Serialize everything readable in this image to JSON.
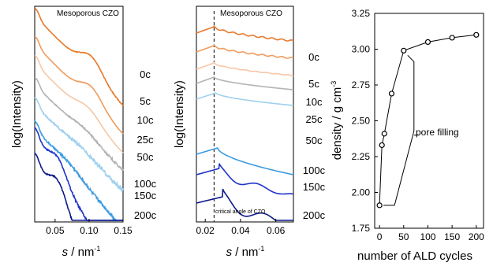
{
  "chart_data": [
    {
      "type": "line",
      "title": "Mesoporous CZO",
      "xlabel": "s / nm",
      "xlabel_exponent": "-1",
      "ylabel": "log(Intensity)",
      "xlim": [
        0.02,
        0.15
      ],
      "xticks": [
        "0.05",
        "0.10",
        "0.15"
      ],
      "xtick_values": [
        0.05,
        0.1,
        0.15
      ],
      "y_scale": "log (offset curves, no tick labels)",
      "series": [
        {
          "name": "0c",
          "color": "#e8792b",
          "offset": 0.0,
          "decay": 1.0,
          "bump_center": 0.104,
          "bump_amp": 0.55,
          "bump_width": 0.016,
          "noise": 0.015
        },
        {
          "name": "5c",
          "color": "#f19b5c",
          "offset": 0.9,
          "decay": 1.0,
          "bump_center": 0.104,
          "bump_amp": 0.48,
          "bump_width": 0.016,
          "noise": 0.01
        },
        {
          "name": "10c",
          "color": "#f6c7a6",
          "offset": 1.5,
          "decay": 1.0,
          "bump_center": 0.1,
          "bump_amp": 0.32,
          "bump_width": 0.017,
          "noise": 0.0
        },
        {
          "name": "25c",
          "color": "#b3b3b3",
          "offset": 2.2,
          "decay": 0.95,
          "bump_center": 0.095,
          "bump_amp": 0.15,
          "bump_width": 0.018,
          "noise": 0.04
        },
        {
          "name": "50c",
          "color": "#9fd0ee",
          "offset": 2.85,
          "decay": 0.95,
          "bump_center": 0.09,
          "bump_amp": 0.1,
          "bump_width": 0.02,
          "noise": 0.07
        },
        {
          "name": "100c",
          "color": "#3d9ce0",
          "offset": 3.6,
          "decay": 1.1,
          "bump_center": 0.07,
          "bump_amp": 0.15,
          "bump_width": 0.02,
          "noise": 0.07
        },
        {
          "name": "150c",
          "color": "#1f33c8",
          "offset": 3.8,
          "decay": 1.6,
          "bump_center": 0.055,
          "bump_amp": 0.5,
          "bump_width": 0.012,
          "noise": 0.06
        },
        {
          "name": "200c",
          "color": "#0d1a8c",
          "offset": 4.6,
          "decay": 1.7,
          "bump_center": 0.055,
          "bump_amp": 0.65,
          "bump_width": 0.012,
          "noise": 0.06
        }
      ]
    },
    {
      "type": "line",
      "title": "Mesoporous CZO",
      "xlabel": "s / nm",
      "xlabel_exponent": "-1",
      "ylabel": "log(Intensity)",
      "xlim": [
        0.015,
        0.07
      ],
      "xticks": [
        "0.02",
        "0.04",
        "0.06"
      ],
      "xtick_values": [
        0.02,
        0.04,
        0.06
      ],
      "y_scale": "log (offset curves, no tick labels)",
      "critical_angle_s": 0.025,
      "annotation": "critical angle of CZO",
      "series": [
        {
          "name": "0c",
          "color": "#e8792b",
          "peak": 0.025,
          "osc_period": 0.0055,
          "osc_amp": 0.05
        },
        {
          "name": "5c",
          "color": "#f19b5c",
          "peak": 0.025,
          "osc_period": 0.0055,
          "osc_amp": 0.045
        },
        {
          "name": "10c",
          "color": "#f6c7a6",
          "peak": 0.025,
          "osc_period": 0.006,
          "osc_amp": 0.02
        },
        {
          "name": "25c",
          "color": "#b3b3b3",
          "peak": 0.025,
          "osc_period": 0.006,
          "osc_amp": 0.0
        },
        {
          "name": "50c",
          "color": "#9fd0ee",
          "peak": 0.026,
          "osc_period": 0.006,
          "osc_amp": 0.0
        },
        {
          "name": "100c",
          "color": "#3d9ce0",
          "peak": 0.027,
          "osc_period": 0.006,
          "osc_amp": 0.0
        },
        {
          "name": "150c",
          "color": "#1f33c8",
          "peak": 0.028,
          "osc_period": 0.022,
          "osc_amp": 0.35
        },
        {
          "name": "200c",
          "color": "#0d1a8c",
          "peak": 0.03,
          "osc_period": 0.024,
          "osc_amp": 0.55
        }
      ]
    },
    {
      "type": "scatter",
      "xlabel": "number of ALD cycles",
      "ylabel": "density / g cm",
      "ylabel_exponent": "-3",
      "xlim": [
        -10,
        215
      ],
      "ylim": [
        1.75,
        3.25
      ],
      "xticks": [
        0,
        50,
        100,
        150,
        200
      ],
      "yticks": [
        "1.75",
        "2.00",
        "2.25",
        "2.50",
        "2.75",
        "3.00",
        "3.25"
      ],
      "ytick_values": [
        1.75,
        2.0,
        2.25,
        2.5,
        2.75,
        3.0,
        3.25
      ],
      "annotation": "pore filling",
      "x": [
        0,
        5,
        10,
        25,
        50,
        100,
        150,
        200
      ],
      "y": [
        1.91,
        2.33,
        2.41,
        2.69,
        2.99,
        3.05,
        3.08,
        3.1
      ],
      "marker": "open circle",
      "line_color": "#000000"
    }
  ]
}
